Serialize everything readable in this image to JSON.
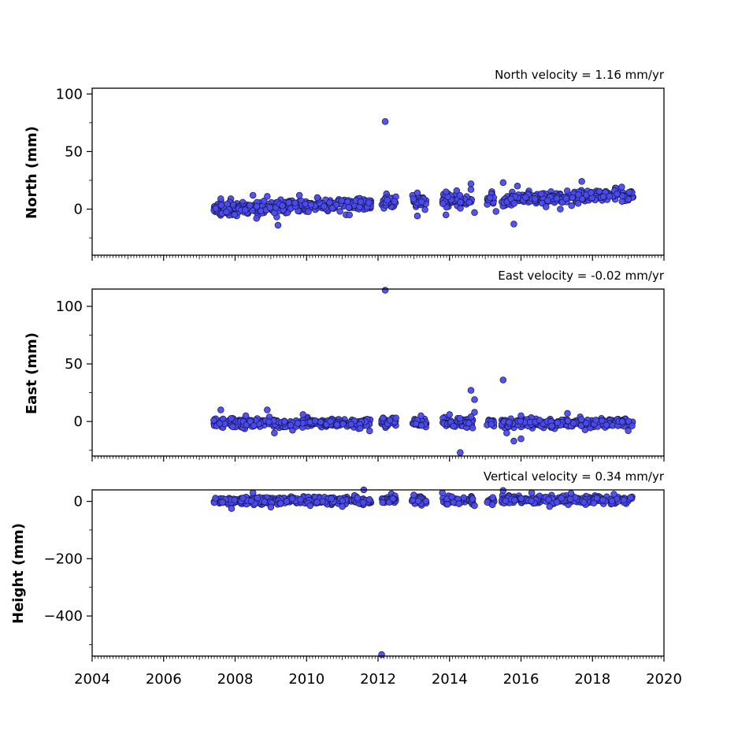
{
  "chart_data": [
    {
      "type": "scatter",
      "panel": "north",
      "title": "North velocity = 1.16 mm/yr",
      "ylabel": "North (mm)",
      "xlim": [
        2004,
        2020
      ],
      "ylim": [
        -40,
        105
      ],
      "yticks": [
        0,
        50,
        100
      ],
      "yminor_step": 25,
      "points": [
        [
          2012.2,
          76
        ],
        [
          2009.2,
          -14
        ],
        [
          2015.8,
          -13
        ],
        [
          2008.6,
          -8
        ],
        [
          2013.1,
          -6
        ],
        [
          2013.9,
          -5
        ],
        [
          2014.6,
          22
        ],
        [
          2015.5,
          23
        ],
        [
          2017.7,
          24
        ],
        [
          2015.9,
          20
        ],
        [
          2014.6,
          17
        ],
        [
          2014.2,
          16
        ],
        [
          2013.1,
          14
        ],
        [
          2013.9,
          15
        ],
        [
          2011.2,
          -5
        ],
        [
          2014.7,
          -3
        ],
        [
          2015.3,
          -2
        ],
        [
          2016.7,
          2
        ],
        [
          2017.1,
          0
        ],
        [
          2007.6,
          9
        ],
        [
          2008.5,
          12
        ],
        [
          2008.9,
          11
        ],
        [
          2009.8,
          12
        ],
        [
          2010.3,
          10
        ]
      ]
    },
    {
      "type": "scatter",
      "panel": "east",
      "title": "East velocity = -0.02 mm/yr",
      "ylabel": "East (mm)",
      "xlim": [
        2004,
        2020
      ],
      "ylim": [
        -30,
        115
      ],
      "yticks": [
        0,
        50,
        100
      ],
      "yminor_step": 25,
      "points": [
        [
          2012.2,
          114
        ],
        [
          2015.5,
          36
        ],
        [
          2014.6,
          27
        ],
        [
          2014.7,
          19
        ],
        [
          2014.3,
          -27
        ],
        [
          2015.8,
          -17
        ],
        [
          2016.0,
          -15
        ],
        [
          2014.7,
          8
        ],
        [
          2015.6,
          -10
        ],
        [
          2013.2,
          5
        ],
        [
          2009.1,
          -10
        ],
        [
          2007.6,
          10
        ],
        [
          2008.9,
          10
        ],
        [
          2016.0,
          5
        ],
        [
          2017.3,
          7
        ],
        [
          2014.0,
          6
        ],
        [
          2014.6,
          4
        ],
        [
          2019.0,
          -8
        ],
        [
          2011.5,
          -6
        ],
        [
          2012.5,
          3
        ],
        [
          2008.3,
          5
        ],
        [
          2009.9,
          6
        ]
      ]
    },
    {
      "type": "scatter",
      "panel": "vertical",
      "title": "Vertical velocity = 0.34 mm/yr",
      "ylabel": "Height (mm)",
      "xlim": [
        2004,
        2020
      ],
      "ylim": [
        -540,
        40
      ],
      "yticks": [
        0,
        -200,
        -400
      ],
      "yminor_step": 100,
      "points": [
        [
          2012.1,
          -535
        ],
        [
          2011.6,
          40
        ],
        [
          2007.9,
          -25
        ],
        [
          2009.0,
          -20
        ],
        [
          2008.5,
          30
        ],
        [
          2015.5,
          38
        ],
        [
          2016.3,
          30
        ],
        [
          2017.4,
          28
        ],
        [
          2013.0,
          22
        ],
        [
          2014.7,
          -15
        ],
        [
          2015.2,
          -12
        ],
        [
          2018.6,
          25
        ],
        [
          2013.8,
          30
        ],
        [
          2010.1,
          -15
        ],
        [
          2011.0,
          -18
        ],
        [
          2016.8,
          -18
        ]
      ]
    }
  ],
  "x_tick_labels": [
    "2004",
    "2006",
    "2008",
    "2010",
    "2012",
    "2014",
    "2016",
    "2018",
    "2020"
  ],
  "marker_color": "#4b4bef",
  "marker_edge_color": "#15154a"
}
